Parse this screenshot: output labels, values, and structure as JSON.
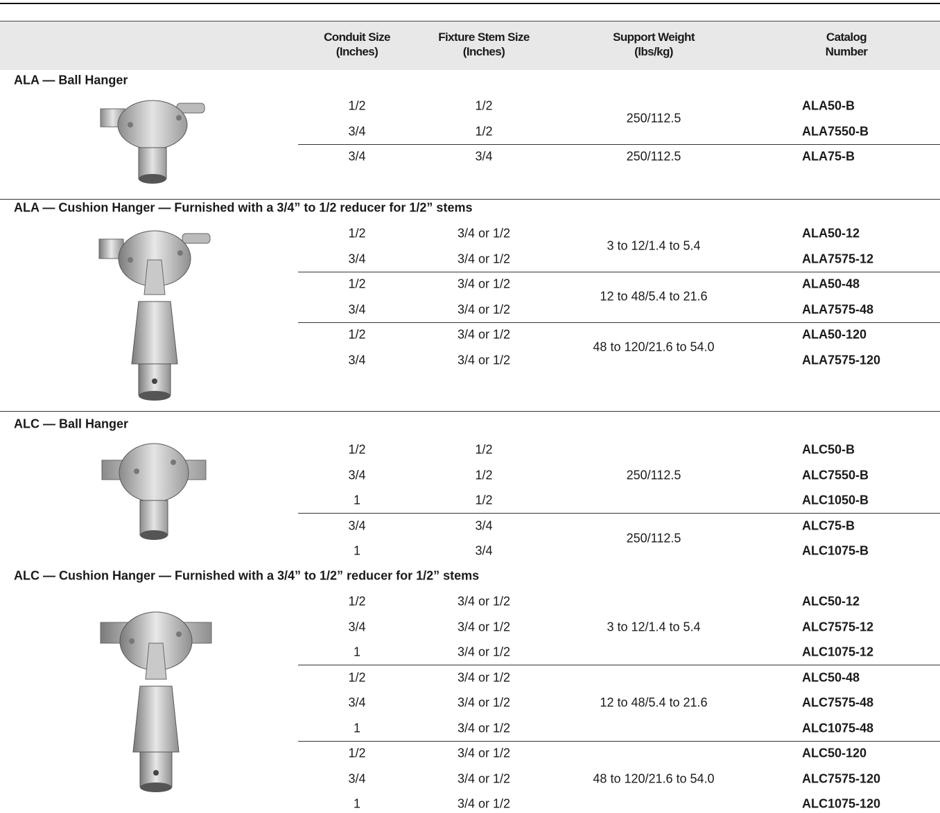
{
  "header": {
    "columns": [
      [
        "Conduit Size",
        "(Inches)"
      ],
      [
        "Fixture Stem Size",
        "(Inches)"
      ],
      [
        "Support Weight",
        "(lbs/kg)"
      ],
      [
        "Catalog",
        "Number"
      ]
    ]
  },
  "sections": [
    {
      "title": "ALA — Ball Hanger",
      "groups": [
        {
          "weight": "250/112.5",
          "rows": [
            [
              "1/2",
              "1/2",
              "ALA50-B"
            ],
            [
              "3/4",
              "1/2",
              "ALA7550-B"
            ]
          ]
        },
        {
          "weight": "250/112.5",
          "rows": [
            [
              "3/4",
              "3/4",
              "ALA75-B"
            ]
          ]
        }
      ]
    },
    {
      "title": "ALA — Cushion Hanger — Furnished with a 3/4” to 1/2 reducer for 1/2” stems",
      "groups": [
        {
          "weight": "3 to 12/1.4 to 5.4",
          "rows": [
            [
              "1/2",
              "3/4 or 1/2",
              "ALA50-12"
            ],
            [
              "3/4",
              "3/4 or 1/2",
              "ALA7575-12"
            ]
          ]
        },
        {
          "weight": "12 to 48/5.4 to 21.6",
          "rows": [
            [
              "1/2",
              "3/4 or 1/2",
              "ALA50-48"
            ],
            [
              "3/4",
              "3/4 or 1/2",
              "ALA7575-48"
            ]
          ]
        },
        {
          "weight": "48 to 120/21.6 to 54.0",
          "rows": [
            [
              "1/2",
              "3/4 or 1/2",
              "ALA50-120"
            ],
            [
              "3/4",
              "3/4 or 1/2",
              "ALA7575-120"
            ]
          ]
        }
      ]
    },
    {
      "title": "ALC — Ball Hanger",
      "groups": [
        {
          "weight": "250/112.5",
          "rows": [
            [
              "1/2",
              "1/2",
              "ALC50-B"
            ],
            [
              "3/4",
              "1/2",
              "ALC7550-B"
            ],
            [
              "1",
              "1/2",
              "ALC1050-B"
            ]
          ]
        },
        {
          "weight": "250/112.5",
          "rows": [
            [
              "3/4",
              "3/4",
              "ALC75-B"
            ],
            [
              "1",
              "3/4",
              "ALC1075-B"
            ]
          ]
        }
      ]
    },
    {
      "title": "ALC — Cushion Hanger — Furnished with a 3/4” to 1/2” reducer for 1/2” stems",
      "groups": [
        {
          "weight": "3 to 12/1.4 to 5.4",
          "rows": [
            [
              "1/2",
              "3/4 or 1/2",
              "ALC50-12"
            ],
            [
              "3/4",
              "3/4 or 1/2",
              "ALC7575-12"
            ],
            [
              "1",
              "3/4 or 1/2",
              "ALC1075-12"
            ]
          ]
        },
        {
          "weight": "12 to 48/5.4 to 21.6",
          "rows": [
            [
              "1/2",
              "3/4 or 1/2",
              "ALC50-48"
            ],
            [
              "3/4",
              "3/4 or 1/2",
              "ALC7575-48"
            ],
            [
              "1",
              "3/4 or 1/2",
              "ALC1075-48"
            ]
          ]
        },
        {
          "weight": "48 to 120/21.6 to 54.0",
          "rows": [
            [
              "1/2",
              "3/4 or 1/2",
              "ALC50-120"
            ],
            [
              "3/4",
              "3/4 or 1/2",
              "ALC7575-120"
            ],
            [
              "1",
              "3/4 or 1/2",
              "ALC1075-120"
            ]
          ]
        }
      ]
    }
  ]
}
